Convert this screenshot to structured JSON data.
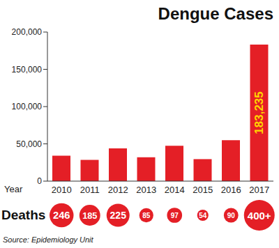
{
  "chart_data": {
    "type": "bar",
    "title": "Dengue Cases",
    "x_label": "Year",
    "categories": [
      "2010",
      "2011",
      "2012",
      "2013",
      "2014",
      "2015",
      "2016",
      "2017"
    ],
    "values": [
      34000,
      28500,
      44000,
      32000,
      47500,
      29500,
      55000,
      183235
    ],
    "value_labels": [
      null,
      null,
      null,
      null,
      null,
      null,
      null,
      "183,235"
    ],
    "color": "#e41f26",
    "ylim": [
      0,
      200000
    ],
    "yticks": [
      0,
      {
        "value": 50000,
        "label": "50,000"
      },
      {
        "value": 100000,
        "label": "100,000"
      },
      {
        "value": 150000,
        "label": "150,000"
      },
      {
        "value": 200000,
        "label": "200,000"
      }
    ],
    "grid": false,
    "deaths": {
      "label": "Deaths",
      "values": [
        246,
        185,
        225,
        85,
        97,
        54,
        90,
        400
      ],
      "value_labels": [
        "246",
        "185",
        "225",
        "85",
        "97",
        "54",
        "90",
        "400+"
      ],
      "color": "#e41f26"
    },
    "source": "Source: Epidemiology Unit"
  }
}
